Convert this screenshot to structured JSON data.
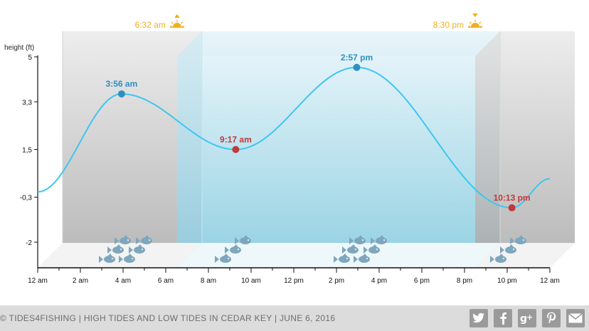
{
  "chart_data": {
    "type": "line",
    "title": "",
    "ylabel": "height (ft)",
    "xlabel": "",
    "ylim": [
      -3,
      5
    ],
    "y_ticks": [
      5,
      3.3,
      1.5,
      -0.3,
      -2
    ],
    "y_tick_labels": [
      "5",
      "3,3",
      "1,5",
      "-0,3",
      "-2"
    ],
    "xlim": [
      0,
      24
    ],
    "x_ticks": [
      0,
      2,
      4,
      6,
      8,
      10,
      12,
      14,
      16,
      18,
      20,
      22,
      24
    ],
    "x_tick_labels": [
      "12 am",
      "2 am",
      "4 am",
      "6 am",
      "8 am",
      "10 am",
      "12 pm",
      "2 pm",
      "4 pm",
      "6 pm",
      "8 pm",
      "10 pm",
      "12 am"
    ],
    "series": [
      {
        "x": [
          0,
          3.93,
          9.28,
          14.95,
          22.22,
          24
        ],
        "y": [
          -0.1,
          3.6,
          1.5,
          4.6,
          -0.7,
          0.4
        ]
      }
    ],
    "extremes": [
      {
        "label": "3:56 am",
        "x": 3.93,
        "y": 3.6,
        "kind": "high",
        "color": "#2f8fc3"
      },
      {
        "label": "9:17 am",
        "x": 9.28,
        "y": 1.5,
        "kind": "low",
        "color": "#c0393b"
      },
      {
        "label": "2:57 pm",
        "x": 14.95,
        "y": 4.6,
        "kind": "high",
        "color": "#2f8fc3"
      },
      {
        "label": "10:13 pm",
        "x": 22.22,
        "y": -0.7,
        "kind": "low",
        "color": "#c0393b"
      }
    ],
    "sunrise": {
      "label": "6:32 am",
      "x": 6.53
    },
    "sunset": {
      "label": "8:30 pm",
      "x": 20.5
    },
    "colors": {
      "line": "#3ec6ef",
      "high": "#2f8fc3",
      "low": "#c0393b",
      "sun": "#f0b020",
      "fish": "#7ea7bd",
      "day_top": "#e6f4f9",
      "day_bottom": "#98d4e4",
      "night_top": "#ededed",
      "night_bottom": "#bdbdbd"
    },
    "fish_icons": "fish-icon",
    "grid": false
  },
  "footer": {
    "text": "© TIDES4FISHING | HIGH TIDES AND LOW TIDES IN CEDAR KEY | JUNE 6, 2016",
    "social": [
      {
        "name": "twitter-icon",
        "glyph": "t"
      },
      {
        "name": "facebook-icon",
        "glyph": "f"
      },
      {
        "name": "google-plus-icon",
        "glyph": "g+"
      },
      {
        "name": "pinterest-icon",
        "glyph": "p"
      },
      {
        "name": "email-icon",
        "glyph": "✉"
      }
    ]
  }
}
